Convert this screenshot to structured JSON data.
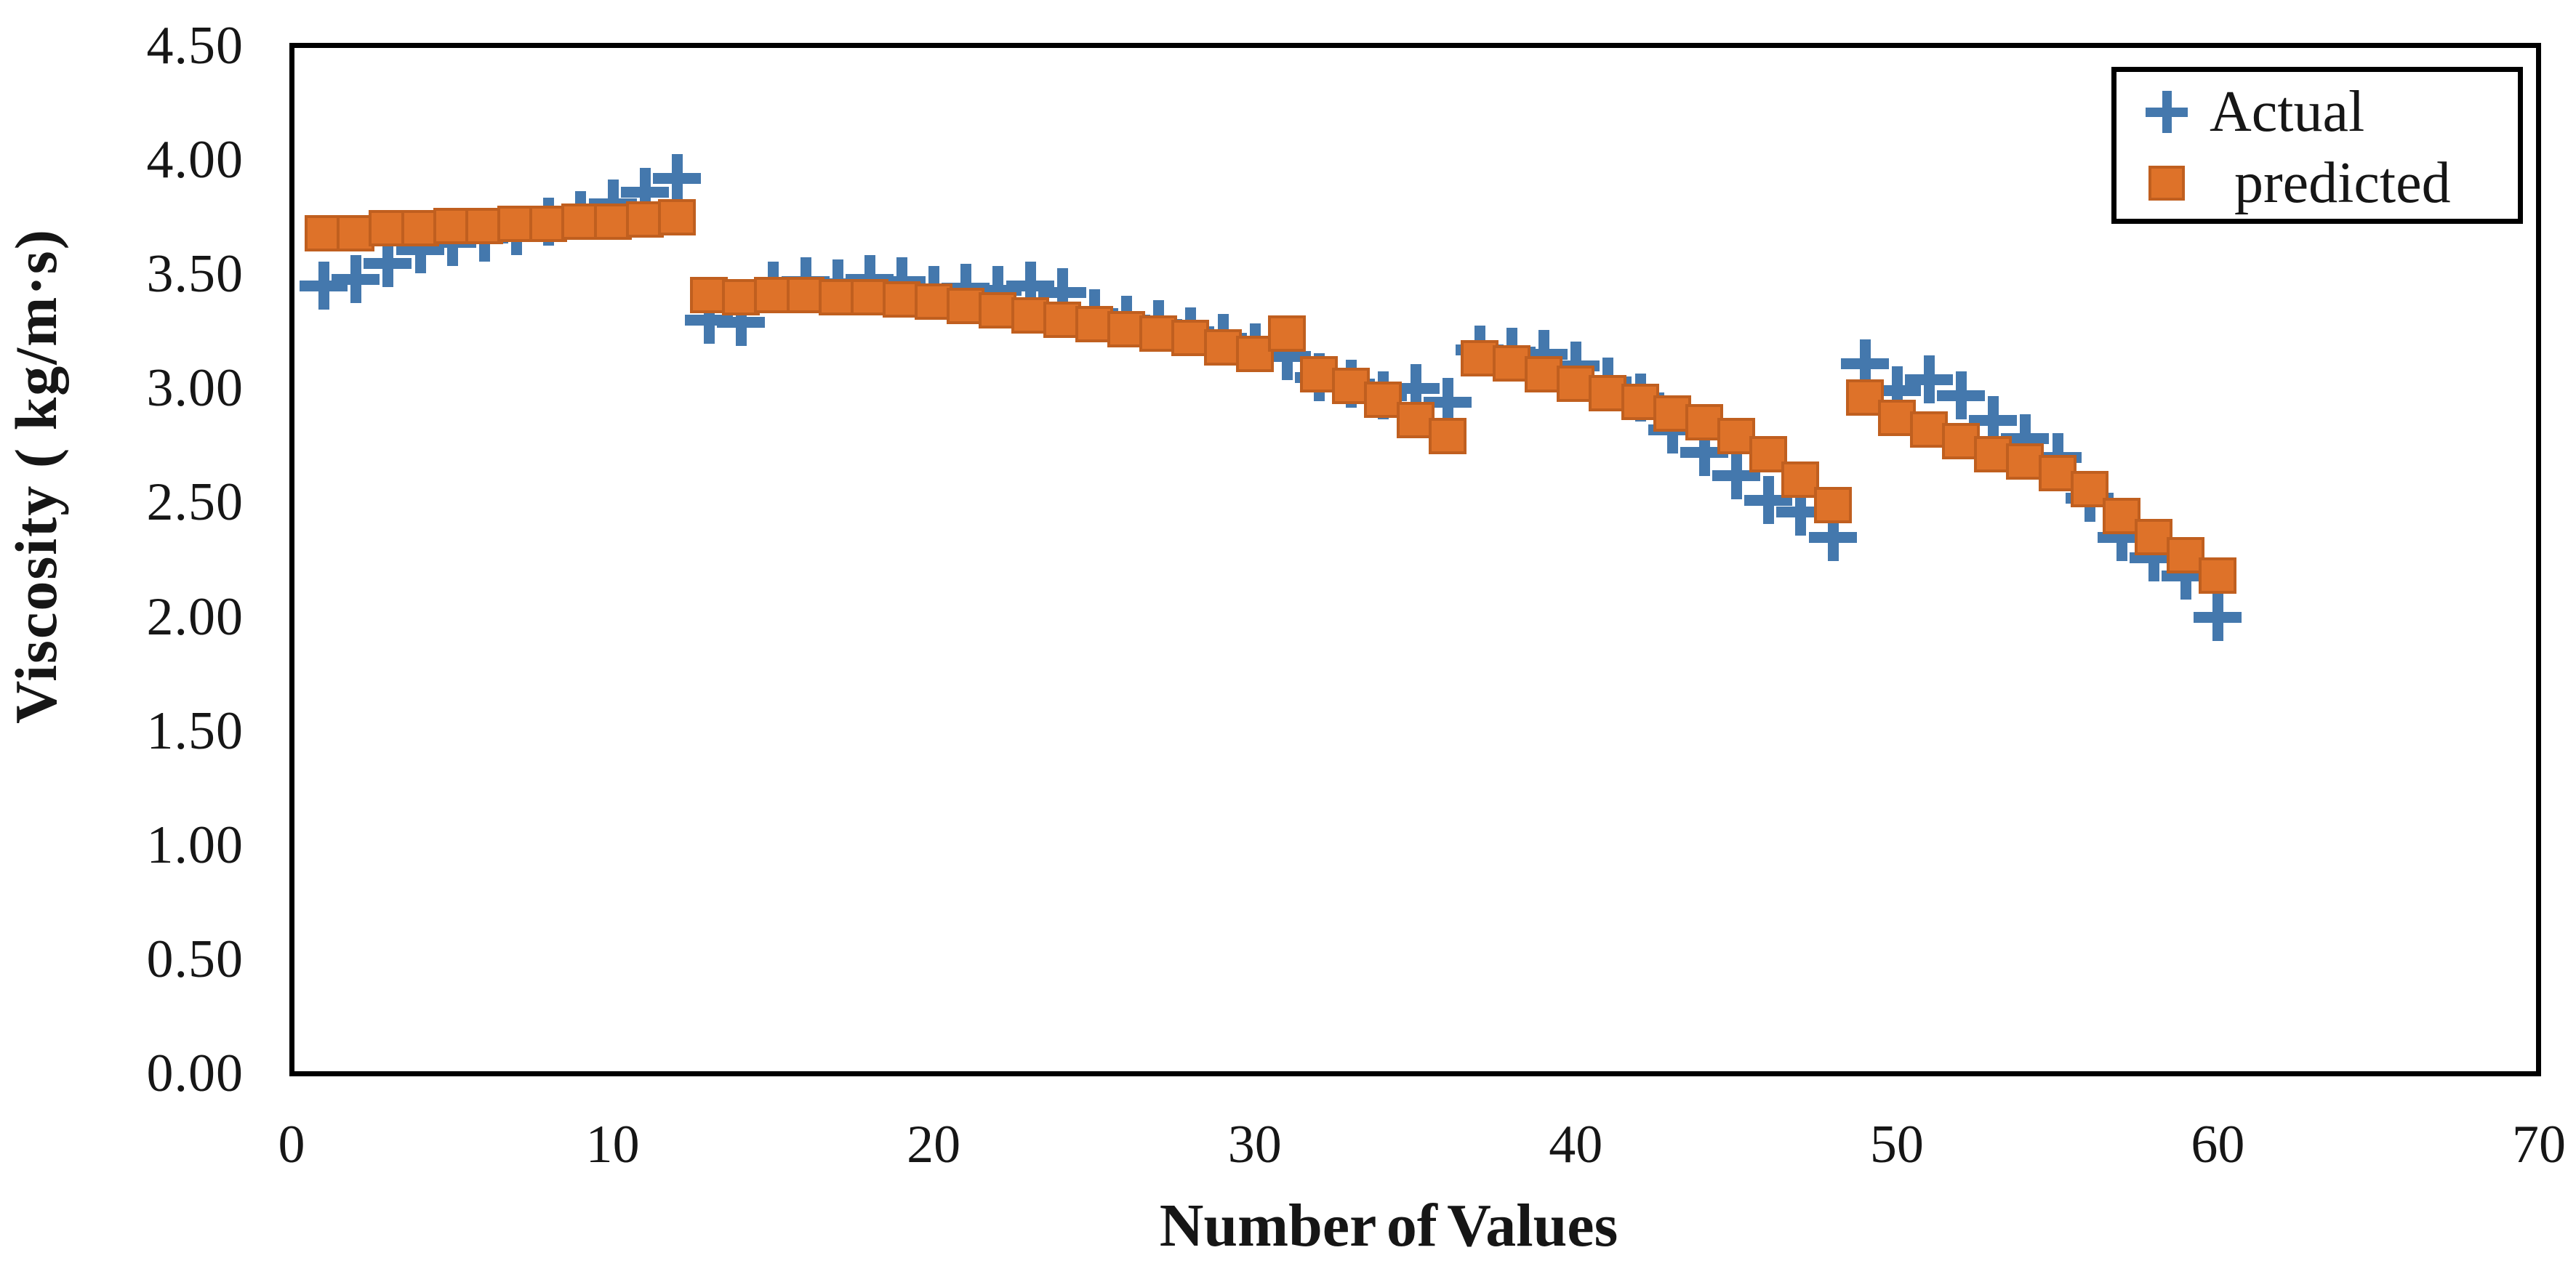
{
  "figure": {
    "background_color": "#ffffff",
    "plot_border_color": "#000000",
    "text_color": "#161616"
  },
  "chart_data": {
    "type": "scatter",
    "title": "",
    "xlabel": "Number of Values",
    "ylabel": "Viscosity ( kg/m·s)",
    "xlim": [
      0,
      70
    ],
    "ylim": [
      0,
      4.5
    ],
    "grid": false,
    "legend_position": "top-right",
    "x_ticks": [
      0,
      10,
      20,
      30,
      40,
      50,
      60,
      70
    ],
    "x_tick_labels": [
      "0",
      "10",
      "20",
      "30",
      "40",
      "50",
      "60",
      "70"
    ],
    "y_ticks": [
      0,
      0.5,
      1.0,
      1.5,
      2.0,
      2.5,
      3.0,
      3.5,
      4.0,
      4.5
    ],
    "y_tick_labels": [
      "0.00",
      "0.50",
      "1.00",
      "1.50",
      "2.00",
      "2.50",
      "3.00",
      "3.50",
      "4.00",
      "4.50"
    ],
    "x": [
      1,
      2,
      3,
      4,
      5,
      6,
      7,
      8,
      9,
      10,
      11,
      12,
      13,
      14,
      15,
      16,
      17,
      18,
      19,
      20,
      21,
      22,
      23,
      24,
      25,
      26,
      27,
      28,
      29,
      30,
      31,
      32,
      33,
      34,
      35,
      36,
      37,
      38,
      39,
      40,
      41,
      42,
      43,
      44,
      45,
      46,
      47,
      48,
      49,
      50,
      51,
      52,
      53,
      54,
      55,
      56,
      57,
      58,
      59,
      60
    ],
    "series": [
      {
        "name": "Actual",
        "marker": "plus",
        "color": "#4478AD",
        "values": [
          3.45,
          3.48,
          3.55,
          3.61,
          3.64,
          3.66,
          3.69,
          3.73,
          3.76,
          3.81,
          3.86,
          3.92,
          3.3,
          3.29,
          3.45,
          3.47,
          3.46,
          3.48,
          3.47,
          3.43,
          3.44,
          3.43,
          3.45,
          3.42,
          3.33,
          3.3,
          3.28,
          3.25,
          3.22,
          3.18,
          3.14,
          3.05,
          3.02,
          2.97,
          3.0,
          2.94,
          3.17,
          3.16,
          3.15,
          3.1,
          3.03,
          2.96,
          2.82,
          2.72,
          2.62,
          2.51,
          2.46,
          2.35,
          3.11,
          2.99,
          3.04,
          2.97,
          2.86,
          2.78,
          2.7,
          2.52,
          2.35,
          2.26,
          2.18,
          2.0
        ]
      },
      {
        "name": "predicted",
        "marker": "square",
        "color": "#DE7229",
        "border_color": "#C05F1F",
        "values": [
          3.68,
          3.68,
          3.7,
          3.7,
          3.71,
          3.71,
          3.72,
          3.72,
          3.73,
          3.73,
          3.74,
          3.75,
          3.41,
          3.4,
          3.41,
          3.41,
          3.4,
          3.4,
          3.39,
          3.38,
          3.36,
          3.34,
          3.32,
          3.3,
          3.28,
          3.26,
          3.24,
          3.22,
          3.18,
          3.15,
          3.24,
          3.06,
          3.01,
          2.95,
          2.86,
          2.79,
          3.13,
          3.11,
          3.06,
          3.02,
          2.98,
          2.94,
          2.89,
          2.85,
          2.79,
          2.71,
          2.6,
          2.49,
          2.96,
          2.87,
          2.82,
          2.77,
          2.71,
          2.68,
          2.63,
          2.56,
          2.44,
          2.35,
          2.27,
          2.18
        ]
      }
    ]
  },
  "legend": {
    "border_color": "#000000",
    "items": [
      {
        "label": "Actual"
      },
      {
        "label": "predicted"
      }
    ]
  }
}
